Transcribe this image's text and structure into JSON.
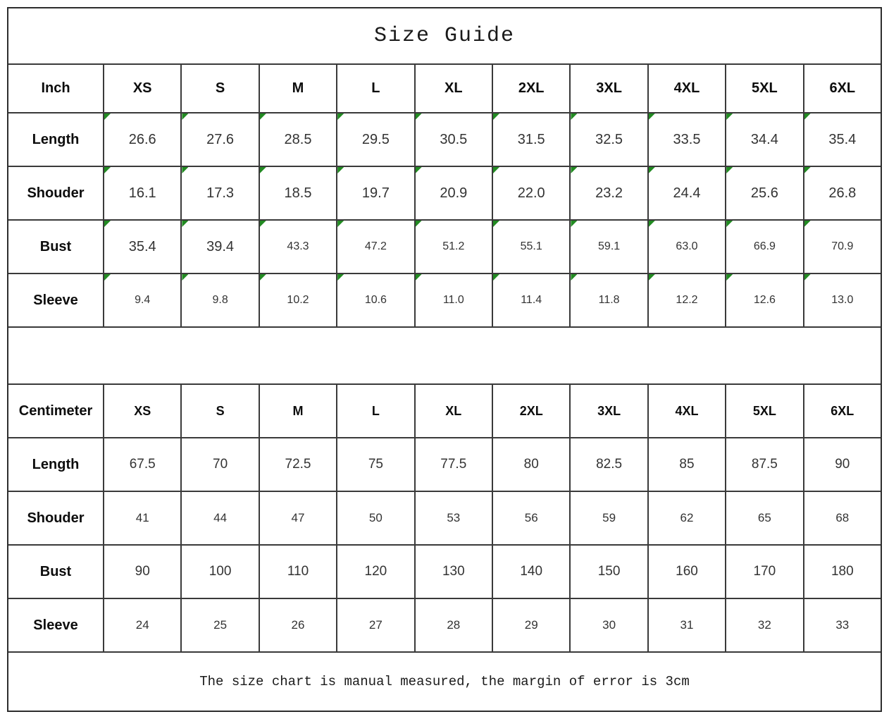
{
  "title": "Size Guide",
  "footer_note": "The size chart is manual measured, the margin of error is 3cm",
  "colors": {
    "outer_line": "#2d2d2d",
    "grid_line": "#3a3a3a",
    "header_text": "#0d0d0d",
    "value_text": "#333333",
    "title_text": "#1a1a1a",
    "flag_green": "#228B22"
  },
  "chart_data": [
    {
      "type": "table",
      "title": "Size Guide",
      "unit_label": "Inch",
      "columns": [
        "XS",
        "S",
        "M",
        "L",
        "XL",
        "2XL",
        "3XL",
        "4XL",
        "5XL",
        "6XL"
      ],
      "flagged_cells": true,
      "rows": [
        {
          "key": "length",
          "label": "Length",
          "values": [
            "26.6",
            "27.6",
            "28.5",
            "29.5",
            "30.5",
            "31.5",
            "32.5",
            "33.5",
            "34.4",
            "35.4"
          ]
        },
        {
          "key": "shouder",
          "label": "Shouder",
          "values": [
            "16.1",
            "17.3",
            "18.5",
            "19.7",
            "20.9",
            "22.0",
            "23.2",
            "24.4",
            "25.6",
            "26.8"
          ]
        },
        {
          "key": "bust",
          "label": "Bust",
          "values": [
            "35.4",
            "39.4",
            "43.3",
            "47.2",
            "51.2",
            "55.1",
            "59.1",
            "63.0",
            "66.9",
            "70.9"
          ]
        },
        {
          "key": "sleeve",
          "label": "Sleeve",
          "values": [
            "9.4",
            "9.8",
            "10.2",
            "10.6",
            "11.0",
            "11.4",
            "11.8",
            "12.2",
            "12.6",
            "13.0"
          ]
        }
      ]
    },
    {
      "type": "table",
      "unit_label": "Centimeter",
      "columns": [
        "XS",
        "S",
        "M",
        "L",
        "XL",
        "2XL",
        "3XL",
        "4XL",
        "5XL",
        "6XL"
      ],
      "flagged_cells": false,
      "note": "The size chart is manual measured, the margin of error is 3cm",
      "rows": [
        {
          "key": "length",
          "label": "Length",
          "values": [
            "67.5",
            "70",
            "72.5",
            "75",
            "77.5",
            "80",
            "82.5",
            "85",
            "87.5",
            "90"
          ]
        },
        {
          "key": "shouder",
          "label": "Shouder",
          "values": [
            "41",
            "44",
            "47",
            "50",
            "53",
            "56",
            "59",
            "62",
            "65",
            "68"
          ]
        },
        {
          "key": "bust",
          "label": "Bust",
          "values": [
            "90",
            "100",
            "110",
            "120",
            "130",
            "140",
            "150",
            "160",
            "170",
            "180"
          ]
        },
        {
          "key": "sleeve",
          "label": "Sleeve",
          "values": [
            "24",
            "25",
            "26",
            "27",
            "28",
            "29",
            "30",
            "31",
            "32",
            "33"
          ]
        }
      ]
    }
  ]
}
